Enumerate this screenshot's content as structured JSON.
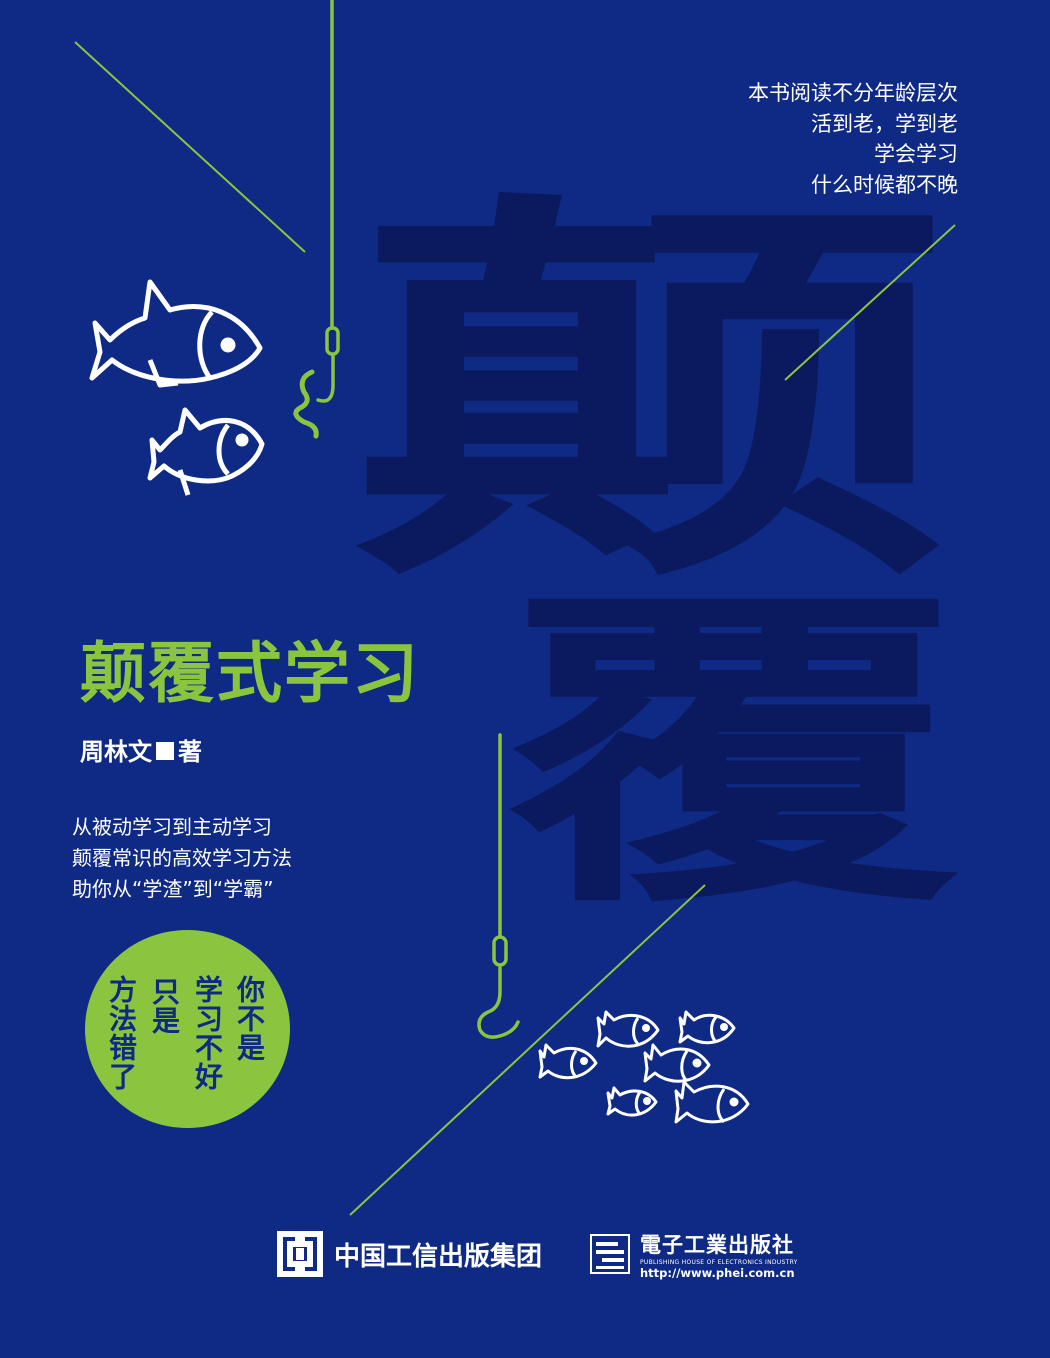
{
  "cover": {
    "big_char_1": "颠",
    "big_char_2": "覆",
    "tagline_top": [
      "本书阅读不分年龄层次",
      "活到老，学到老",
      "学会学习",
      "什么时候都不晚"
    ],
    "title": "颠覆式学习",
    "author": {
      "name": "周林文",
      "role": "著"
    },
    "tagline_mid": [
      "从被动学习到主动学习",
      "颠覆常识的高效学习方法",
      "助你从“学渣”到“学霸”"
    ],
    "badge": [
      "你不是",
      "学习不好",
      "只是",
      "方法错了"
    ],
    "publisher_group": "中国工信出版集团",
    "publisher": {
      "name_cn": "電子工業出版社",
      "name_en": "PUBLISHING HOUSE OF ELECTRONICS INDUSTRY",
      "url": "http://www.phei.com.cn"
    },
    "colors": {
      "background": "#0f2a85",
      "accent": "#8bc53f",
      "big_glyph": "#0b1a5e",
      "text": "#ffffff"
    }
  }
}
